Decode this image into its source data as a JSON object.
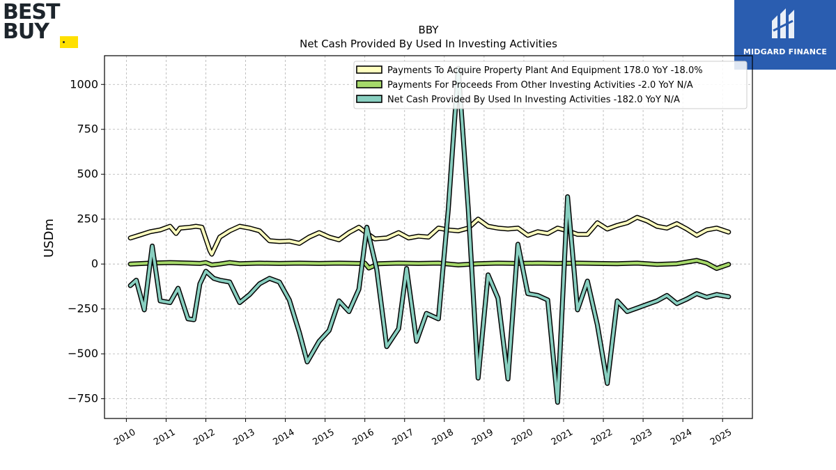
{
  "logos": {
    "left_brand": "BEST BUY",
    "right_brand": "MIDGARD FINANCE"
  },
  "colors": {
    "background": "#ffffff",
    "grid": "#b0b0b0",
    "ppe": "#ffffbf",
    "other": "#a6d96a",
    "net": "#88cfc0",
    "outline": "#000000",
    "mf_bg": "#2a5db0",
    "bb_tag": "#ffe000"
  },
  "chart_data": {
    "type": "line",
    "title": "BBY",
    "subtitle": "Net Cash Provided By Used In Investing Activities",
    "ylabel": "USDm",
    "xlabel": "",
    "xlim": [
      2009.45,
      2025.75
    ],
    "ylim": [
      -860,
      1160
    ],
    "x_ticks": [
      "2010",
      "2011",
      "2012",
      "2013",
      "2014",
      "2015",
      "2016",
      "2017",
      "2018",
      "2019",
      "2020",
      "2021",
      "2022",
      "2023",
      "2024",
      "2025"
    ],
    "y_ticks": [
      -750,
      -500,
      -250,
      0,
      250,
      500,
      750,
      1000
    ],
    "y_tick_labels": [
      "−750",
      "−500",
      "−250",
      "0",
      "250",
      "500",
      "750",
      "1000"
    ],
    "grid": true,
    "legend_position": "top-right",
    "series": [
      {
        "name": "Payments To Acquire Property Plant And Equipment",
        "legend_label": "Payments To Acquire Property Plant And Equipment  178.0 YoY -18.0%",
        "color_key": "ppe",
        "points": [
          [
            2010.1,
            145
          ],
          [
            2010.35,
            162
          ],
          [
            2010.6,
            180
          ],
          [
            2010.85,
            190
          ],
          [
            2011.1,
            210
          ],
          [
            2011.25,
            170
          ],
          [
            2011.35,
            200
          ],
          [
            2011.6,
            205
          ],
          [
            2011.75,
            210
          ],
          [
            2011.9,
            205
          ],
          [
            2012.1,
            75
          ],
          [
            2012.15,
            55
          ],
          [
            2012.35,
            150
          ],
          [
            2012.6,
            185
          ],
          [
            2012.85,
            210
          ],
          [
            2013.1,
            200
          ],
          [
            2013.35,
            185
          ],
          [
            2013.6,
            130
          ],
          [
            2013.85,
            125
          ],
          [
            2014.1,
            128
          ],
          [
            2014.35,
            115
          ],
          [
            2014.6,
            150
          ],
          [
            2014.85,
            175
          ],
          [
            2015.1,
            150
          ],
          [
            2015.35,
            135
          ],
          [
            2015.6,
            175
          ],
          [
            2015.85,
            205
          ],
          [
            2016.0,
            180
          ],
          [
            2016.25,
            140
          ],
          [
            2016.55,
            145
          ],
          [
            2016.85,
            175
          ],
          [
            2017.1,
            145
          ],
          [
            2017.35,
            155
          ],
          [
            2017.6,
            150
          ],
          [
            2017.85,
            200
          ],
          [
            2018.1,
            190
          ],
          [
            2018.35,
            185
          ],
          [
            2018.6,
            200
          ],
          [
            2018.85,
            250
          ],
          [
            2019.1,
            210
          ],
          [
            2019.35,
            200
          ],
          [
            2019.6,
            195
          ],
          [
            2019.85,
            200
          ],
          [
            2020.1,
            160
          ],
          [
            2020.35,
            180
          ],
          [
            2020.6,
            170
          ],
          [
            2020.85,
            200
          ],
          [
            2021.1,
            185
          ],
          [
            2021.35,
            165
          ],
          [
            2021.6,
            165
          ],
          [
            2021.85,
            230
          ],
          [
            2022.1,
            195
          ],
          [
            2022.35,
            215
          ],
          [
            2022.6,
            230
          ],
          [
            2022.85,
            260
          ],
          [
            2023.1,
            240
          ],
          [
            2023.35,
            210
          ],
          [
            2023.6,
            200
          ],
          [
            2023.85,
            225
          ],
          [
            2024.1,
            195
          ],
          [
            2024.35,
            160
          ],
          [
            2024.6,
            190
          ],
          [
            2024.85,
            200
          ],
          [
            2025.15,
            178
          ]
        ]
      },
      {
        "name": "Payments For Proceeds From Other Investing Activities",
        "legend_label": "Payments For Proceeds From Other Investing Activities  -2.0 YoY N/A",
        "color_key": "other",
        "points": [
          [
            2010.1,
            0
          ],
          [
            2010.6,
            5
          ],
          [
            2011.1,
            8
          ],
          [
            2011.6,
            5
          ],
          [
            2011.85,
            3
          ],
          [
            2012.0,
            8
          ],
          [
            2012.15,
            -5
          ],
          [
            2012.35,
            0
          ],
          [
            2012.6,
            8
          ],
          [
            2012.85,
            2
          ],
          [
            2013.35,
            5
          ],
          [
            2013.85,
            3
          ],
          [
            2014.35,
            5
          ],
          [
            2014.85,
            3
          ],
          [
            2015.35,
            5
          ],
          [
            2015.85,
            3
          ],
          [
            2016.0,
            5
          ],
          [
            2016.1,
            -22
          ],
          [
            2016.35,
            2
          ],
          [
            2016.85,
            5
          ],
          [
            2017.35,
            3
          ],
          [
            2017.85,
            5
          ],
          [
            2018.35,
            -5
          ],
          [
            2018.85,
            2
          ],
          [
            2019.35,
            5
          ],
          [
            2019.85,
            3
          ],
          [
            2020.35,
            5
          ],
          [
            2020.85,
            3
          ],
          [
            2021.35,
            5
          ],
          [
            2021.85,
            3
          ],
          [
            2022.35,
            2
          ],
          [
            2022.85,
            5
          ],
          [
            2023.35,
            -2
          ],
          [
            2023.85,
            2
          ],
          [
            2024.35,
            20
          ],
          [
            2024.6,
            5
          ],
          [
            2024.85,
            -25
          ],
          [
            2025.15,
            -2
          ]
        ]
      },
      {
        "name": "Net Cash Provided By Used In Investing Activities",
        "legend_label": "Net Cash Provided By Used In Investing Activities  -182.0 YoY N/A",
        "color_key": "net",
        "points": [
          [
            2010.1,
            -120
          ],
          [
            2010.25,
            -90
          ],
          [
            2010.45,
            -255
          ],
          [
            2010.65,
            100
          ],
          [
            2010.85,
            -205
          ],
          [
            2011.1,
            -215
          ],
          [
            2011.3,
            -135
          ],
          [
            2011.55,
            -305
          ],
          [
            2011.7,
            -310
          ],
          [
            2011.85,
            -110
          ],
          [
            2012.0,
            -40
          ],
          [
            2012.2,
            -80
          ],
          [
            2012.35,
            -90
          ],
          [
            2012.6,
            -100
          ],
          [
            2012.85,
            -215
          ],
          [
            2013.1,
            -170
          ],
          [
            2013.35,
            -110
          ],
          [
            2013.6,
            -80
          ],
          [
            2013.85,
            -100
          ],
          [
            2014.1,
            -200
          ],
          [
            2014.35,
            -380
          ],
          [
            2014.55,
            -545
          ],
          [
            2014.85,
            -430
          ],
          [
            2015.1,
            -370
          ],
          [
            2015.35,
            -205
          ],
          [
            2015.6,
            -265
          ],
          [
            2015.85,
            -140
          ],
          [
            2016.05,
            205
          ],
          [
            2016.3,
            -30
          ],
          [
            2016.55,
            -460
          ],
          [
            2016.85,
            -360
          ],
          [
            2017.05,
            -25
          ],
          [
            2017.3,
            -430
          ],
          [
            2017.55,
            -275
          ],
          [
            2017.85,
            -305
          ],
          [
            2018.1,
            305
          ],
          [
            2018.35,
            1090
          ],
          [
            2018.6,
            310
          ],
          [
            2018.85,
            -635
          ],
          [
            2019.1,
            -60
          ],
          [
            2019.35,
            -190
          ],
          [
            2019.6,
            -640
          ],
          [
            2019.85,
            110
          ],
          [
            2020.1,
            -165
          ],
          [
            2020.35,
            -175
          ],
          [
            2020.6,
            -200
          ],
          [
            2020.85,
            -770
          ],
          [
            2021.1,
            375
          ],
          [
            2021.35,
            -255
          ],
          [
            2021.6,
            -95
          ],
          [
            2021.85,
            -340
          ],
          [
            2022.1,
            -665
          ],
          [
            2022.35,
            -205
          ],
          [
            2022.6,
            -265
          ],
          [
            2022.85,
            -245
          ],
          [
            2023.1,
            -225
          ],
          [
            2023.35,
            -205
          ],
          [
            2023.6,
            -175
          ],
          [
            2023.85,
            -220
          ],
          [
            2024.1,
            -195
          ],
          [
            2024.35,
            -165
          ],
          [
            2024.6,
            -185
          ],
          [
            2024.85,
            -170
          ],
          [
            2025.15,
            -182
          ]
        ]
      }
    ]
  }
}
